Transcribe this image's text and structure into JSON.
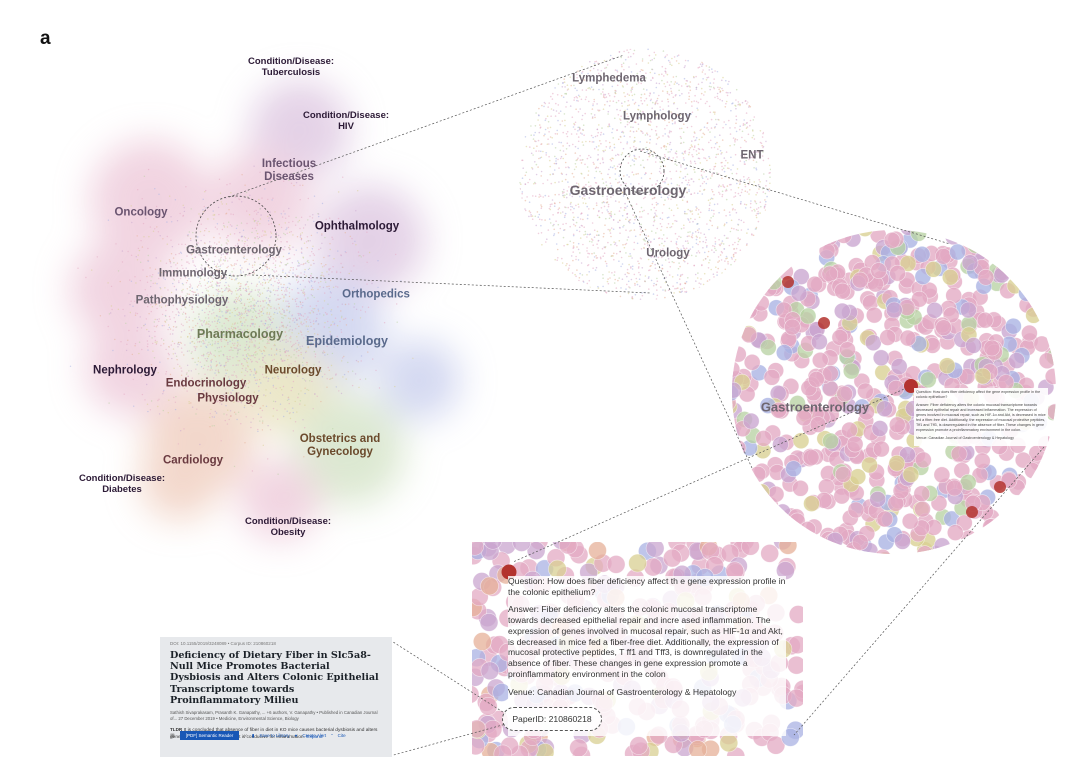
{
  "panel_letter": "a",
  "map": {
    "labels": [
      {
        "id": "tuberculosis",
        "text": "Condition/Disease:\nTuberculosis"
      },
      {
        "id": "hiv",
        "text": "Condition/Disease:\nHIV"
      },
      {
        "id": "infectious",
        "text": "Infectious\nDiseases"
      },
      {
        "id": "oncology",
        "text": "Oncology"
      },
      {
        "id": "ophthalmology",
        "text": "Ophthalmology"
      },
      {
        "id": "gastro",
        "text": "Gastroenterology"
      },
      {
        "id": "immunology",
        "text": "Immunology"
      },
      {
        "id": "orthopedics",
        "text": "Orthopedics"
      },
      {
        "id": "pathophysiology",
        "text": "Pathophysiology"
      },
      {
        "id": "pharmacology",
        "text": "Pharmacology"
      },
      {
        "id": "epidemiology",
        "text": "Epidemiology"
      },
      {
        "id": "nephrology",
        "text": "Nephrology"
      },
      {
        "id": "neurology",
        "text": "Neurology"
      },
      {
        "id": "endocrinology",
        "text": "Endocrinology"
      },
      {
        "id": "physiology",
        "text": "Physiology"
      },
      {
        "id": "obstetrics",
        "text": "Obstetrics and\nGynecology"
      },
      {
        "id": "cardiology",
        "text": "Cardiology"
      },
      {
        "id": "diabetes",
        "text": "Condition/Disease:\nDiabetes"
      },
      {
        "id": "obesity",
        "text": "Condition/Disease:\nObesity"
      }
    ]
  },
  "zoom1": {
    "labels": [
      {
        "id": "lymphedema",
        "text": "Lymphedema"
      },
      {
        "id": "lymphology",
        "text": "Lymphology"
      },
      {
        "id": "ent",
        "text": "ENT"
      },
      {
        "id": "gastro",
        "text": "Gastroenterology"
      },
      {
        "id": "urology",
        "text": "Urology"
      }
    ]
  },
  "zoom2": {
    "label": "Gastroenterology",
    "tooltip": {
      "question": "Question: How does fiber deficiency affect the gene expression profile in the colonic epithelium?",
      "answer": "Answer: Fiber deficiency alters the colonic mucosal transcriptome towards decreased epithelial repair and increased inflammation. The expression of genes involved in mucosal repair, such as HIF-1α and Akt, is decreased in mice fed a fiber-free diet. Additionally, the expression of mucosal protective peptides, Tff1 and Tff3, is downregulated in the absence of fiber. These changes in gene expression promote a proinflammatory environment in the colon.",
      "venue": "Venue: Canadian Journal of Gastroenterology & Hepatology"
    }
  },
  "answer_card": {
    "question": "Question: How does fiber deficiency affect th e gene expression profile in the colonic epithelium?",
    "answer": "Answer: Fiber deficiency alters the colonic mucosal transcriptome towards decreased epithelial repair and incre ased inflammation. The expression of genes involved in mucosal repair, such as HIF-1α and Akt, is decreased in mice fed a fiber-free diet. Additionally, the expression of mucosal protective peptides, T ff1 and Tff3, is downregulated in the absence of fiber. These changes in gene expression promote a proinflammatory environment in the colon",
    "venue": "Venue: Canadian Journal of Gastroenterology & Hepatology",
    "paper_id": "PaperID: 210860218"
  },
  "paper_card": {
    "doi": "DOI: 10.1155/2019/3248089 • Corpus ID: 210860218",
    "title": "Deficiency of Dietary Fiber in Slc5a8-Null Mice Promotes Bacterial Dysbiosis and Alters Colonic Epithelial Transcriptome towards Proinflammatory Milieu",
    "authors": "Sathish Sivaprakasam, Prasanth K. Ganapathy, ... +6 authors, V. Ganapathy • Published in Canadian Journal of... 27 December 2019 • Medicine, Environmental Science, Biology",
    "tldr_label": "TLDR",
    "tldr": "It is concluded that absence of fiber in diet in KO mice causes bacterial dysbiosis and alters gene expression in the colon that is conducive for inflammation.",
    "expand": "Expand",
    "pdf_button": "[PDF] Semantic Reader",
    "save_label": "Save to Library",
    "alert_label": "Create Alert",
    "cite_label": "Cite"
  },
  "colors": {
    "pink": "#e3a9c3",
    "mauve": "#c9a5cf",
    "blue": "#a9b2e3",
    "green": "#b9d2a4",
    "yellow": "#d8cf92",
    "orange": "#e6b098",
    "highlight": "#b3332e",
    "link_blue": "#1857b6"
  }
}
